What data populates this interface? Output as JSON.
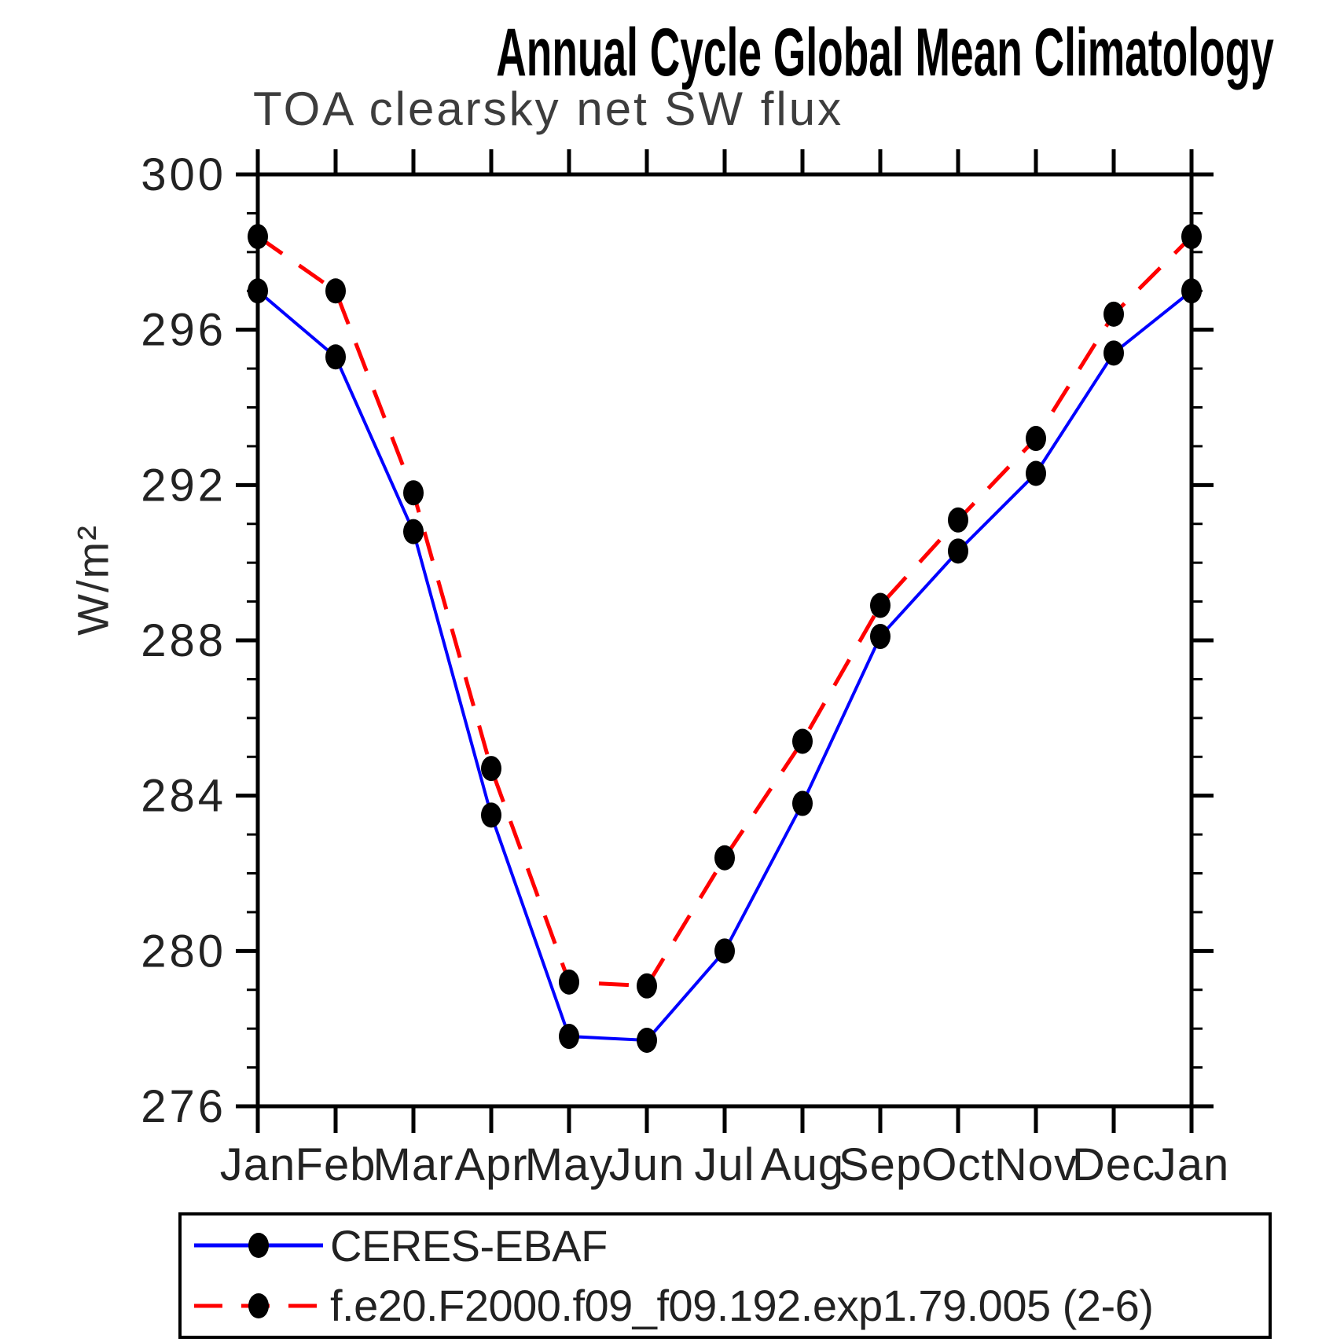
{
  "title": "Annual Cycle Global Mean Climatology",
  "subtitle": "TOA clearsky net SW flux",
  "chart_data": {
    "type": "line",
    "title": "Annual Cycle Global Mean Climatology",
    "subtitle": "TOA clearsky net SW flux",
    "xlabel": "",
    "ylabel": "W/m²",
    "x_categories": [
      "Jan",
      "Feb",
      "Mar",
      "Apr",
      "May",
      "Jun",
      "Jul",
      "Aug",
      "Sep",
      "Oct",
      "Nov",
      "Dec",
      "Jan"
    ],
    "ylim": [
      276,
      300
    ],
    "ytick_major": [
      276,
      280,
      284,
      288,
      292,
      296,
      300
    ],
    "ytick_minor_step": 1,
    "grid": false,
    "legend_position": "bottom",
    "marker": "filled-circle",
    "marker_color": "#000000",
    "series": [
      {
        "name": "CERES-EBAF",
        "color": "#0000ff",
        "line_style": "solid",
        "values": [
          297.0,
          295.3,
          290.8,
          283.5,
          277.8,
          277.7,
          280.0,
          283.8,
          288.1,
          290.3,
          292.3,
          295.4,
          297.0
        ]
      },
      {
        "name": "f.e20.F2000.f09_f09.192.exp1.79.005 (2-6)",
        "color": "#ff0000",
        "line_style": "dashed",
        "values": [
          298.4,
          297.0,
          291.8,
          284.7,
          279.2,
          279.1,
          282.4,
          285.4,
          288.9,
          291.1,
          293.2,
          296.4,
          298.4
        ]
      }
    ]
  }
}
